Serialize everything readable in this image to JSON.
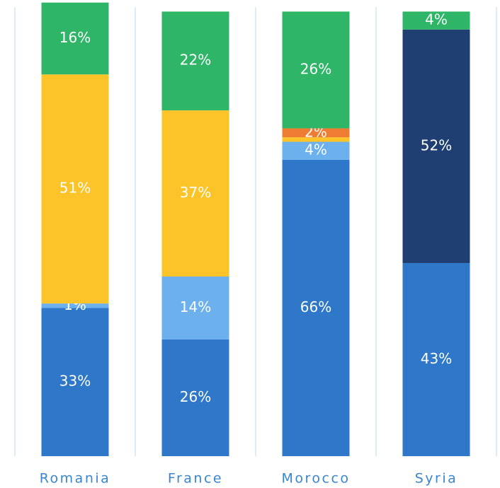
{
  "chart_data": {
    "type": "stacked_bar",
    "categories": [
      "Romania",
      "France",
      "Morocco",
      "Syria"
    ],
    "ylim": [
      0,
      100
    ],
    "series": [
      {
        "color": "#2f78c9",
        "values": [
          33,
          26,
          66,
          43
        ],
        "value_labels": [
          "33%",
          "26%",
          "66%",
          "43%"
        ]
      },
      {
        "color": "#6cb0ee",
        "values": [
          1,
          14,
          4,
          null
        ],
        "value_labels": [
          "1%",
          "14%",
          "4%",
          null
        ]
      },
      {
        "color": "#fdc42a",
        "values": [
          51,
          37,
          1,
          null
        ],
        "value_labels": [
          "51%",
          "37%",
          null,
          null
        ]
      },
      {
        "color": "#ee7d33",
        "values": [
          null,
          null,
          2,
          null
        ],
        "value_labels": [
          null,
          null,
          "2%",
          null
        ]
      },
      {
        "color": "#1f3f72",
        "values": [
          null,
          null,
          null,
          52
        ],
        "value_labels": [
          null,
          null,
          null,
          "52%"
        ]
      },
      {
        "color": "#2fb567",
        "values": [
          16,
          22,
          26,
          4
        ],
        "value_labels": [
          "16%",
          "22%",
          "26%",
          "4%"
        ]
      }
    ]
  }
}
